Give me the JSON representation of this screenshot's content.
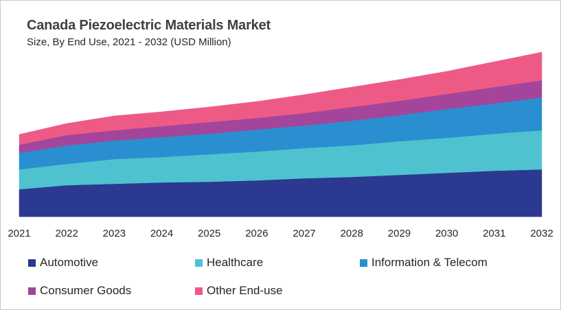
{
  "chart_data": {
    "type": "area",
    "stacked": true,
    "title": "Canada Piezoelectric Materials Market",
    "subtitle": "Size, By End Use, 2021 - 2032 (USD Million)",
    "xlabel": "",
    "ylabel": "",
    "x": [
      "2021",
      "2022",
      "2023",
      "2024",
      "2025",
      "2026",
      "2027",
      "2028",
      "2029",
      "2030",
      "2031",
      "2032"
    ],
    "ylim": [
      0,
      240
    ],
    "y_axis_shown": false,
    "grid": false,
    "legend_position": "bottom",
    "series": [
      {
        "name": "Automotive",
        "color": "#2b3990",
        "values": [
          40,
          46,
          48,
          50,
          51,
          53,
          56,
          58,
          61,
          64,
          67,
          69
        ]
      },
      {
        "name": "Healthcare",
        "color": "#4ec3cf",
        "values": [
          29,
          31,
          36,
          37,
          40,
          42,
          44,
          46,
          49,
          51,
          54,
          57
        ]
      },
      {
        "name": "Information & Telecom",
        "color": "#2a8fd0",
        "values": [
          24,
          27,
          27,
          29,
          30,
          32,
          33,
          36,
          38,
          42,
          44,
          48
        ]
      },
      {
        "name": "Consumer Goods",
        "color": "#a3459b",
        "values": [
          12,
          15,
          15,
          16,
          17,
          17,
          18,
          20,
          21,
          22,
          24,
          25
        ]
      },
      {
        "name": "Other End-use",
        "color": "#ee5a86",
        "values": [
          15,
          17,
          21,
          21,
          22,
          24,
          27,
          29,
          31,
          33,
          37,
          41
        ]
      }
    ]
  }
}
